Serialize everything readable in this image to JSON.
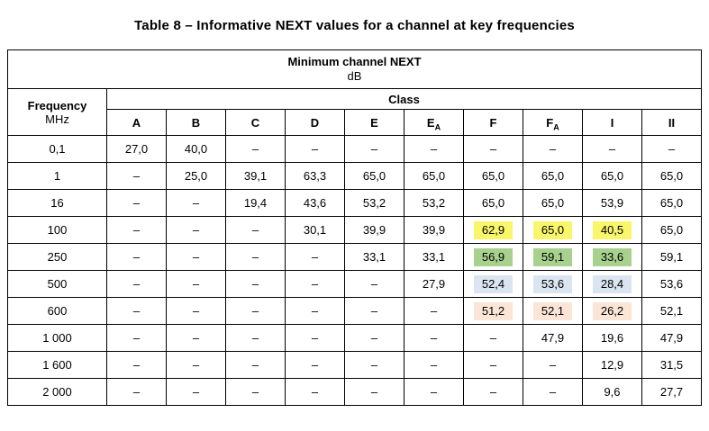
{
  "title": "Table 8 – Informative NEXT values for a channel at key frequencies",
  "table": {
    "top_header": "Minimum channel NEXT",
    "unit": "dB",
    "frequency_label": "Frequency",
    "frequency_unit": "MHz",
    "class_label": "Class",
    "classes": [
      {
        "t": "A"
      },
      {
        "t": "B"
      },
      {
        "t": "C"
      },
      {
        "t": "D"
      },
      {
        "t": "E"
      },
      {
        "t": "E",
        "sub": "A"
      },
      {
        "t": "F"
      },
      {
        "t": "F",
        "sub": "A"
      },
      {
        "t": "I"
      },
      {
        "t": "II"
      }
    ],
    "highlight_colors": {
      "yellow": "#f9f66b",
      "green": "#a9d18e",
      "blue": "#dbe5f1",
      "peach": "#fbe5d6"
    },
    "rows": [
      {
        "freq": "0,1",
        "values": [
          "27,0",
          "40,0",
          "–",
          "–",
          "–",
          "–",
          "–",
          "–",
          "–",
          "–"
        ]
      },
      {
        "freq": "1",
        "values": [
          "–",
          "25,0",
          "39,1",
          "63,3",
          "65,0",
          "65,0",
          "65,0",
          "65,0",
          "65,0",
          "65,0"
        ]
      },
      {
        "freq": "16",
        "values": [
          "–",
          "–",
          "19,4",
          "43,6",
          "53,2",
          "53,2",
          "65,0",
          "65,0",
          "53,9",
          "65,0"
        ]
      },
      {
        "freq": "100",
        "values": [
          "–",
          "–",
          "–",
          "30,1",
          "39,9",
          "39,9",
          "62,9",
          "65,0",
          "40,5",
          "65,0"
        ],
        "highlight": {
          "cols": [
            6,
            7,
            8
          ],
          "color": "yellow"
        }
      },
      {
        "freq": "250",
        "values": [
          "–",
          "–",
          "–",
          "–",
          "33,1",
          "33,1",
          "56,9",
          "59,1",
          "33,6",
          "59,1"
        ],
        "highlight": {
          "cols": [
            6,
            7,
            8
          ],
          "color": "green"
        }
      },
      {
        "freq": "500",
        "values": [
          "–",
          "–",
          "–",
          "–",
          "–",
          "27,9",
          "52,4",
          "53,6",
          "28,4",
          "53,6"
        ],
        "highlight": {
          "cols": [
            6,
            7,
            8
          ],
          "color": "blue"
        }
      },
      {
        "freq": "600",
        "values": [
          "–",
          "–",
          "–",
          "–",
          "–",
          "–",
          "51,2",
          "52,1",
          "26,2",
          "52,1"
        ],
        "highlight": {
          "cols": [
            6,
            7,
            8
          ],
          "color": "peach"
        }
      },
      {
        "freq": "1 000",
        "values": [
          "–",
          "–",
          "–",
          "–",
          "–",
          "–",
          "–",
          "47,9",
          "19,6",
          "47,9"
        ]
      },
      {
        "freq": "1 600",
        "values": [
          "–",
          "–",
          "–",
          "–",
          "–",
          "–",
          "–",
          "–",
          "12,9",
          "31,5"
        ]
      },
      {
        "freq": "2 000",
        "values": [
          "–",
          "–",
          "–",
          "–",
          "–",
          "–",
          "–",
          "–",
          "9,6",
          "27,7"
        ]
      }
    ]
  }
}
